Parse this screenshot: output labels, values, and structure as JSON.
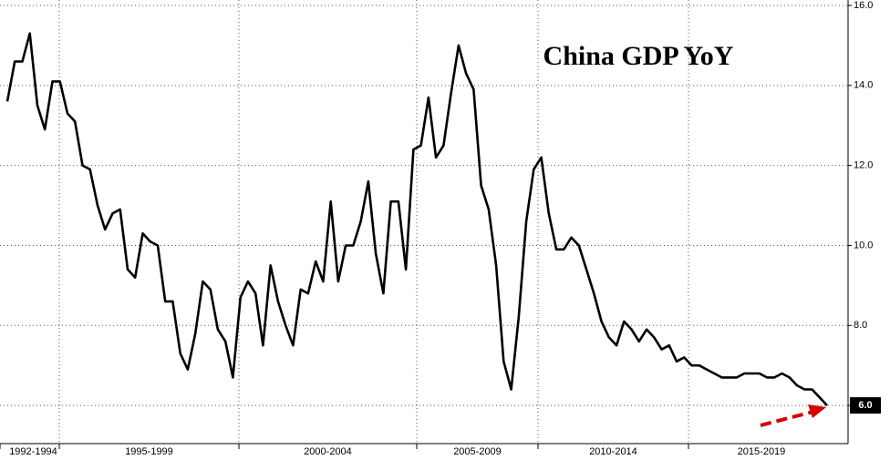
{
  "chart_data": {
    "type": "line",
    "title": "China GDP YoY",
    "x_axis_labels": [
      "1992-1994",
      "1995-1999",
      "2000-2004",
      "2005-2009",
      "2010-2014",
      "2015-2019"
    ],
    "series": [
      {
        "name": "China GDP YoY",
        "color": "#000000",
        "values": [
          13.6,
          14.6,
          14.6,
          15.3,
          13.5,
          12.9,
          14.1,
          14.1,
          13.3,
          13.1,
          12.0,
          11.9,
          11.0,
          10.4,
          10.8,
          10.9,
          9.4,
          9.2,
          10.3,
          10.1,
          10.0,
          8.6,
          8.6,
          7.3,
          6.9,
          7.8,
          9.1,
          8.9,
          7.9,
          7.6,
          6.7,
          8.7,
          9.1,
          8.8,
          7.5,
          9.5,
          8.6,
          8.0,
          7.5,
          8.9,
          8.8,
          9.6,
          9.1,
          11.1,
          9.1,
          10.0,
          10.0,
          10.6,
          11.6,
          9.8,
          8.8,
          11.1,
          11.1,
          9.4,
          12.4,
          12.5,
          13.7,
          12.2,
          12.5,
          13.8,
          15.0,
          14.3,
          13.9,
          11.5,
          10.9,
          9.5,
          7.1,
          6.4,
          8.2,
          10.6,
          11.9,
          12.2,
          10.8,
          9.9,
          9.9,
          10.2,
          10.0,
          9.4,
          8.8,
          8.1,
          7.7,
          7.5,
          8.1,
          7.9,
          7.6,
          7.9,
          7.7,
          7.4,
          7.5,
          7.1,
          7.2,
          7.0,
          7.0,
          6.9,
          6.8,
          6.7,
          6.7,
          6.7,
          6.8,
          6.8,
          6.8,
          6.7,
          6.7,
          6.8,
          6.7,
          6.5,
          6.4,
          6.4,
          6.2,
          6.0
        ]
      }
    ],
    "last_value_label": "6.0",
    "ylim": [
      5,
      16
    ],
    "yticks": [
      {
        "value": 6,
        "label": "6.0"
      },
      {
        "value": 8,
        "label": "8.0"
      },
      {
        "value": 10,
        "label": "10.0"
      },
      {
        "value": 12,
        "label": "12.0"
      },
      {
        "value": 14,
        "label": "14.0"
      },
      {
        "value": 16,
        "label": "16.0"
      }
    ],
    "grid": true
  }
}
